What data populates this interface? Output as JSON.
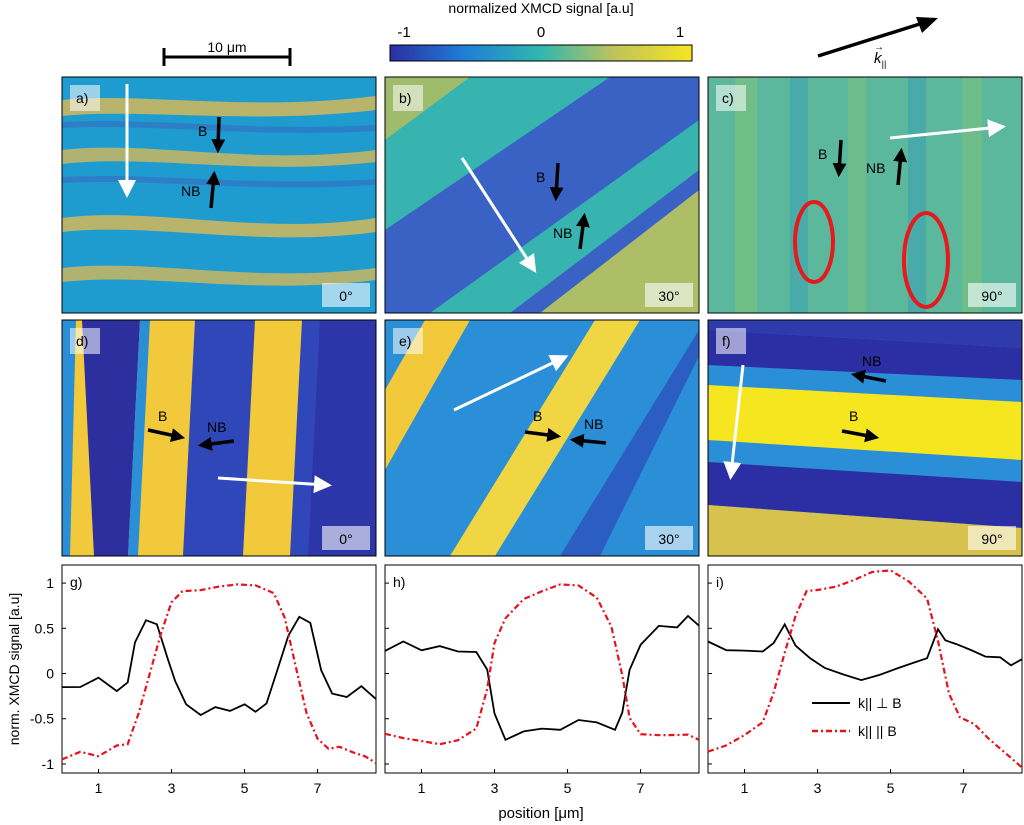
{
  "colorbar": {
    "title": "normalized XMCD signal [a.u]",
    "ticks": [
      "-1",
      "0",
      "1"
    ],
    "colors": [
      "#2b2fa3",
      "#1f7fd6",
      "#2fb8ae",
      "#c3c35a",
      "#f5e620"
    ]
  },
  "scalebar": {
    "label": "10 μm"
  },
  "k_vector": {
    "symbol": "k",
    "arrow_sub": "→",
    "subscript": "||"
  },
  "images": [
    {
      "label": "a)",
      "angle": "0°"
    },
    {
      "label": "b)",
      "angle": "30°"
    },
    {
      "label": "c)",
      "angle": "90°"
    },
    {
      "label": "d)",
      "angle": "0°"
    },
    {
      "label": "e)",
      "angle": "30°"
    },
    {
      "label": "f)",
      "angle": "90°"
    }
  ],
  "domain_labels": {
    "bulk": "B",
    "non_bulk": "NB"
  },
  "colors": {
    "solid": "#000000",
    "dashed": "#e8111b",
    "arrow_white": "#ffffff",
    "ellipse": "#e41a1c"
  },
  "chart_data": [
    {
      "type": "line",
      "label": "g)",
      "xlabel": "",
      "ylabel": "norm. XMCD signal [a.u]",
      "xlim": [
        0,
        8.6
      ],
      "ylim": [
        -1.1,
        1.2
      ],
      "xticks": [
        "1",
        "3",
        "5",
        "7"
      ],
      "yticks": [
        "1",
        "0.5",
        "0",
        "-0.5",
        "-1"
      ],
      "series": [
        {
          "name": "k|| ⊥ B",
          "x": [
            0,
            0.5,
            1,
            1.5,
            1.8,
            2.0,
            2.3,
            2.6,
            2.9,
            3.1,
            3.4,
            3.8,
            4.2,
            4.6,
            5.0,
            5.3,
            5.6,
            5.9,
            6.2,
            6.5,
            6.8,
            7.1,
            7.4,
            7.8,
            8.2,
            8.6
          ],
          "y": [
            -0.15,
            -0.2,
            -0.1,
            -0.2,
            -0.05,
            0.4,
            0.6,
            0.5,
            0.1,
            -0.1,
            -0.3,
            -0.4,
            -0.35,
            -0.45,
            -0.4,
            -0.45,
            -0.3,
            0.1,
            0.45,
            0.6,
            0.5,
            0.0,
            -0.2,
            -0.2,
            -0.1,
            -0.3
          ]
        },
        {
          "name": "k|| || B",
          "x": [
            0,
            0.5,
            1,
            1.5,
            1.8,
            2.1,
            2.4,
            2.7,
            3.0,
            3.3,
            3.8,
            4.3,
            4.8,
            5.3,
            5.8,
            6.1,
            6.4,
            6.7,
            7.0,
            7.3,
            7.6,
            8.0,
            8.3,
            8.6
          ],
          "y": [
            -0.95,
            -0.9,
            -0.95,
            -0.8,
            -0.75,
            -0.4,
            0.0,
            0.4,
            0.75,
            0.9,
            0.95,
            1.0,
            1.0,
            0.95,
            0.85,
            0.6,
            0.1,
            -0.4,
            -0.7,
            -0.85,
            -0.85,
            -0.9,
            -0.9,
            -0.95
          ]
        }
      ]
    },
    {
      "type": "line",
      "label": "h)",
      "xlabel": "position [μm]",
      "ylabel": "",
      "xlim": [
        0,
        8.6
      ],
      "ylim": [
        -1.1,
        1.2
      ],
      "xticks": [
        "1",
        "3",
        "5",
        "7"
      ],
      "yticks": [],
      "series": [
        {
          "name": "k|| ⊥ B",
          "x": [
            0,
            0.5,
            1,
            1.5,
            2.0,
            2.5,
            2.8,
            3.0,
            3.3,
            3.8,
            4.3,
            4.8,
            5.3,
            5.8,
            6.3,
            6.5,
            6.7,
            7.0,
            7.5,
            8.0,
            8.3,
            8.6
          ],
          "y": [
            0.2,
            0.3,
            0.25,
            0.35,
            0.3,
            0.25,
            0.0,
            -0.5,
            -0.75,
            -0.6,
            -0.55,
            -0.6,
            -0.55,
            -0.6,
            -0.65,
            -0.4,
            0.1,
            0.35,
            0.5,
            0.45,
            0.6,
            0.55
          ]
        },
        {
          "name": "k|| || B",
          "x": [
            0,
            0.5,
            1,
            1.5,
            2.0,
            2.5,
            2.8,
            3.0,
            3.3,
            3.8,
            4.3,
            4.8,
            5.3,
            5.8,
            6.2,
            6.5,
            6.7,
            7.0,
            7.5,
            8.0,
            8.3,
            8.6
          ],
          "y": [
            -0.7,
            -0.75,
            -0.75,
            -0.75,
            -0.7,
            -0.6,
            -0.2,
            0.3,
            0.6,
            0.85,
            0.95,
            1.0,
            0.95,
            0.8,
            0.5,
            0.0,
            -0.45,
            -0.65,
            -0.7,
            -0.72,
            -0.7,
            -0.72
          ]
        }
      ]
    },
    {
      "type": "line",
      "label": "i)",
      "xlabel": "",
      "ylabel": "",
      "xlim": [
        0,
        8.6
      ],
      "ylim": [
        -1.1,
        1.2
      ],
      "xticks": [
        "1",
        "3",
        "5",
        "7"
      ],
      "yticks": [],
      "legend": [
        {
          "key": "solid",
          "text": "k|| ⊥ B"
        },
        {
          "key": "dashed",
          "text": "k|| || B"
        }
      ],
      "series": [
        {
          "name": "k|| ⊥ B",
          "x": [
            0,
            0.5,
            1,
            1.5,
            1.8,
            2.1,
            2.4,
            2.8,
            3.2,
            3.7,
            4.2,
            4.7,
            5.2,
            5.7,
            6.0,
            6.3,
            6.5,
            6.8,
            7.2,
            7.6,
            8.0,
            8.3,
            8.6
          ],
          "y": [
            0.3,
            0.25,
            0.3,
            0.3,
            0.35,
            0.5,
            0.25,
            0.15,
            0.1,
            0.05,
            -0.05,
            -0.05,
            0.0,
            0.1,
            0.2,
            0.55,
            0.4,
            0.3,
            0.2,
            0.15,
            0.2,
            0.15,
            0.2
          ]
        },
        {
          "name": "k|| || B",
          "x": [
            0,
            0.5,
            1,
            1.5,
            1.8,
            2.1,
            2.4,
            2.7,
            3.0,
            3.5,
            4.0,
            4.5,
            5.0,
            5.5,
            6.0,
            6.3,
            6.6,
            6.9,
            7.3,
            7.7,
            8.1,
            8.6
          ],
          "y": [
            -0.9,
            -0.8,
            -0.65,
            -0.5,
            -0.2,
            0.2,
            0.6,
            0.9,
            0.95,
            1.0,
            1.05,
            1.1,
            1.1,
            1.0,
            0.85,
            0.4,
            -0.2,
            -0.5,
            -0.6,
            -0.75,
            -0.85,
            -1.0
          ]
        }
      ]
    }
  ]
}
